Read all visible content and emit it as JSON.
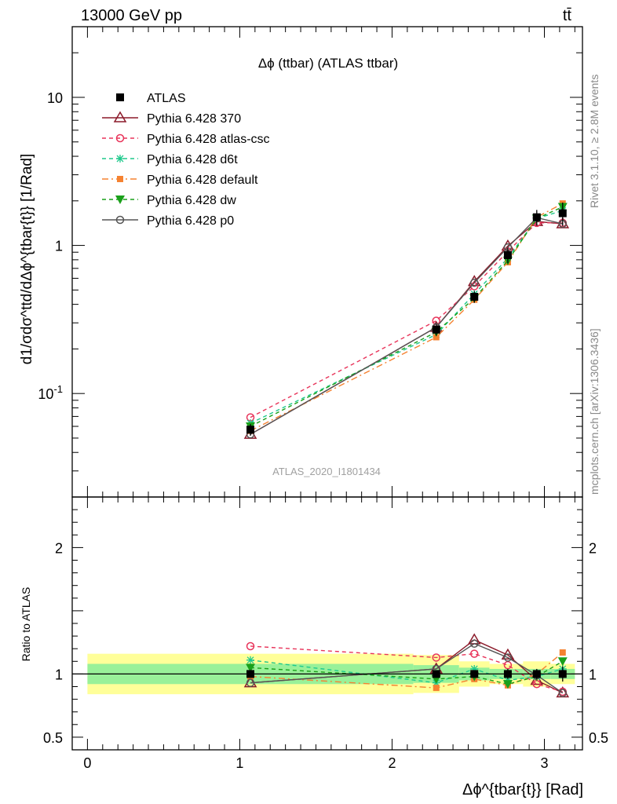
{
  "header": {
    "energy": "13000 GeV pp",
    "process": "tt̄"
  },
  "side": {
    "rivet": "Rivet 3.1.10, ≥ 2.8M events",
    "source": "mcplots.cern.ch [arXiv:1306.3436]"
  },
  "chart_data": {
    "type": "line",
    "title": "Δϕ (ttbar) (ATLAS ttbar)",
    "watermark": "ATLAS_2020_I1801434",
    "ylabel_main": "d1/σdσ^ttd/dΔϕ^{tbar{t}} [1/Rad]",
    "ylabel_ratio": "Ratio to ATLAS",
    "xlabel": "Δϕ^{tbar{t}} [Rad]",
    "xlim": [
      -0.1,
      3.25
    ],
    "ylim": [
      0.02,
      30
    ],
    "yscale": "log",
    "ratio_ylim": [
      0.4,
      2.4
    ],
    "x_ticks": [
      "0",
      "1",
      "2",
      "3"
    ],
    "y_ticks": [
      "10^-1",
      "1",
      "10"
    ],
    "ratio_ticks": [
      "0.5",
      "1",
      "2"
    ],
    "legend_position": "top-left",
    "x": [
      1.07,
      2.29,
      2.54,
      2.76,
      2.95,
      3.12
    ],
    "bins": [
      [
        0,
        2.14,
        0.05
      ],
      [
        2.14,
        2.44,
        0.05
      ],
      [
        2.44,
        2.64,
        0.05
      ],
      [
        2.64,
        2.86,
        0.05
      ],
      [
        2.86,
        3.04,
        0.05
      ],
      [
        3.04,
        3.2,
        0.05
      ]
    ],
    "data_errors": [
      0.03,
      0.03,
      0.03,
      0.04,
      0.04,
      0.06
    ],
    "bands": {
      "outer": [
        0.16,
        0.15,
        0.1,
        0.08,
        0.1,
        0.08
      ],
      "inner": [
        0.08,
        0.07,
        0.05,
        0.04,
        0.04,
        0.04
      ]
    },
    "series": [
      {
        "name": "ATLAS",
        "values": [
          0.057,
          0.27,
          0.45,
          0.86,
          1.55,
          1.65
        ],
        "ratio": [
          1,
          1,
          1,
          1,
          1,
          1
        ],
        "color": "#000000",
        "marker": "square",
        "dash": ""
      },
      {
        "name": "Pythia 6.428 370",
        "values": [
          0.053,
          0.28,
          0.57,
          0.99,
          1.45,
          1.4
        ],
        "ratio": [
          0.93,
          1.04,
          1.27,
          1.15,
          0.95,
          0.85
        ],
        "color": "#8b1a2a",
        "marker": "triangle",
        "dash": ""
      },
      {
        "name": "Pythia 6.428 atlas-csc",
        "values": [
          0.069,
          0.31,
          0.53,
          0.91,
          1.42,
          1.42
        ],
        "ratio": [
          1.22,
          1.13,
          1.16,
          1.07,
          0.92,
          0.86
        ],
        "color": "#e8345a",
        "marker": "circle-open",
        "dash": "5,4"
      },
      {
        "name": "Pythia 6.428 d6t",
        "values": [
          0.063,
          0.25,
          0.47,
          0.82,
          1.52,
          1.72
        ],
        "ratio": [
          1.11,
          0.93,
          1.04,
          0.95,
          0.98,
          1.04
        ],
        "color": "#1ec98c",
        "marker": "star",
        "dash": "5,4"
      },
      {
        "name": "Pythia 6.428 default",
        "values": [
          0.056,
          0.24,
          0.43,
          0.77,
          1.55,
          1.92
        ],
        "ratio": [
          0.98,
          0.89,
          0.96,
          0.91,
          1.0,
          1.17
        ],
        "color": "#f58231",
        "marker": "square-small",
        "dash": "8,4,2,4"
      },
      {
        "name": "Pythia 6.428 dw",
        "values": [
          0.06,
          0.26,
          0.44,
          0.79,
          1.52,
          1.82
        ],
        "ratio": [
          1.05,
          0.96,
          0.98,
          0.92,
          0.98,
          1.1
        ],
        "color": "#1aa01a",
        "marker": "triangle-down",
        "dash": "5,4"
      },
      {
        "name": "Pythia 6.428 p0",
        "values": [
          0.053,
          0.28,
          0.56,
          0.97,
          1.54,
          1.4
        ],
        "ratio": [
          0.93,
          1.04,
          1.24,
          1.13,
          0.99,
          0.85
        ],
        "color": "#555555",
        "marker": "circle-open",
        "dash": ""
      }
    ]
  }
}
